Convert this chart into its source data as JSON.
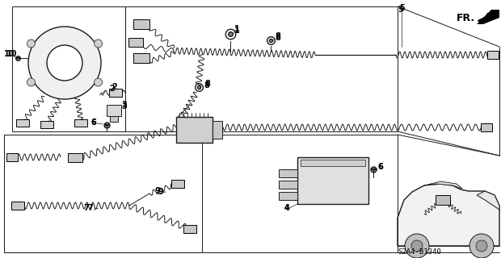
{
  "background_color": "#ffffff",
  "line_color": "#1a1a1a",
  "diagram_code": "S2A4-B1340",
  "fig_width": 6.2,
  "fig_height": 3.2,
  "dpi": 100
}
